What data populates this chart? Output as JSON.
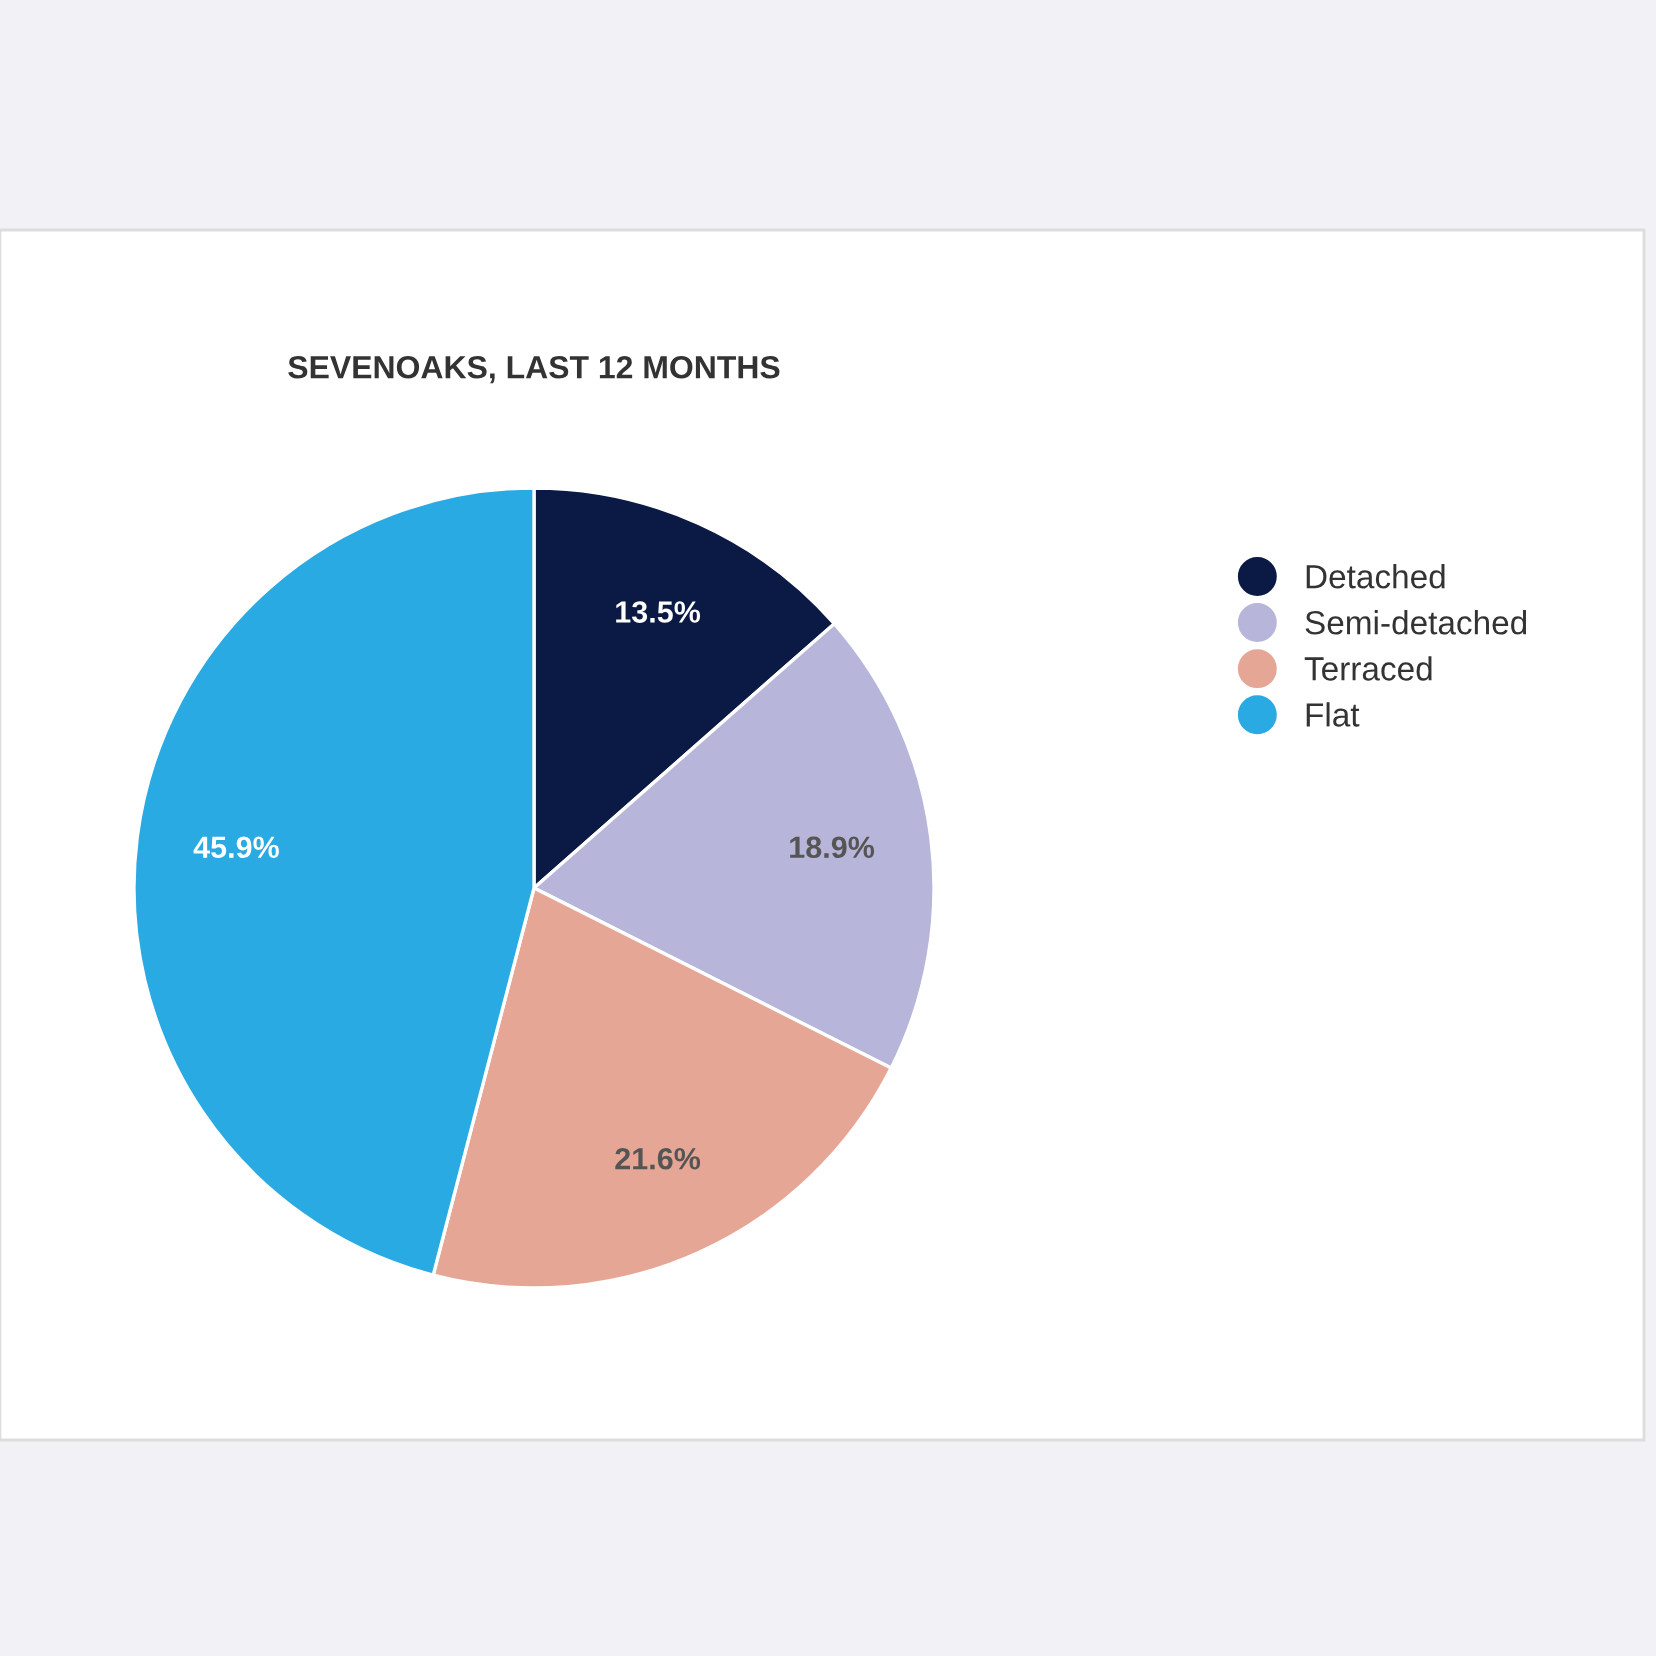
{
  "chart_data": {
    "type": "pie",
    "title": "SEVENOAKS, LAST 12 MONTHS",
    "categories": [
      "Detached",
      "Semi-detached",
      "Terraced",
      "Flat"
    ],
    "values": [
      13.5,
      18.9,
      21.6,
      45.9
    ],
    "value_labels": [
      "13.5%",
      "18.9%",
      "21.6%",
      "45.9%"
    ],
    "colors": [
      "#0b1a45",
      "#b7b5d9",
      "#e5a696",
      "#2aaae2"
    ],
    "legend": "right"
  }
}
